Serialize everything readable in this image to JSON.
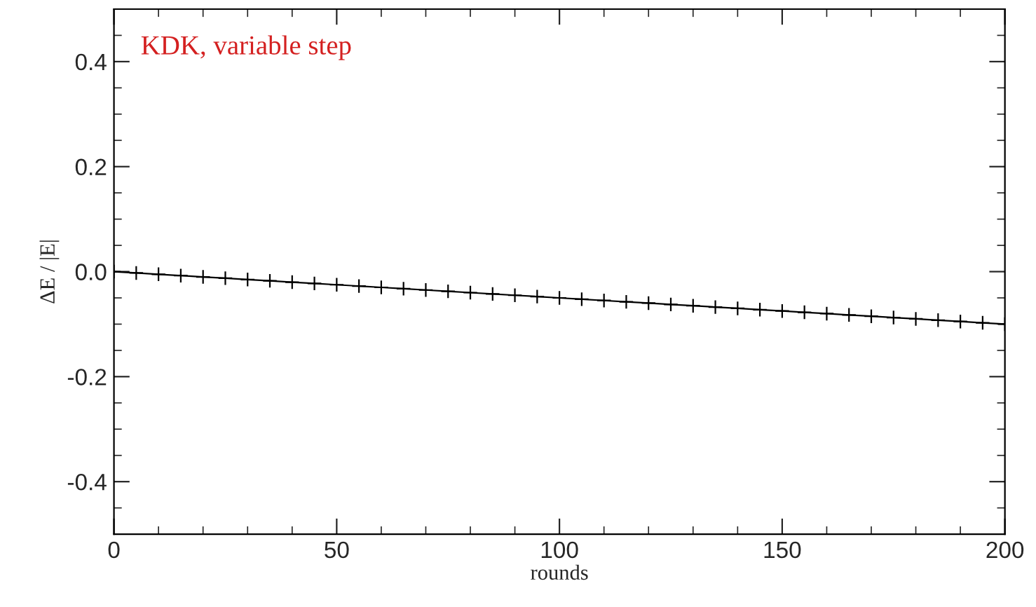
{
  "chart_data": {
    "type": "line",
    "xlabel": "rounds",
    "ylabel": "ΔE / |E|",
    "annotations": [
      "KDK, variable step"
    ],
    "x": [
      0,
      5,
      10,
      15,
      20,
      25,
      30,
      35,
      40,
      45,
      50,
      55,
      60,
      65,
      70,
      75,
      80,
      85,
      90,
      95,
      100,
      105,
      110,
      115,
      120,
      125,
      130,
      135,
      140,
      145,
      150,
      155,
      160,
      165,
      170,
      175,
      180,
      185,
      190,
      195,
      200
    ],
    "series": [
      {
        "color": "#000000",
        "values": [
          0.0,
          -0.0025,
          -0.005,
          -0.0075,
          -0.01,
          -0.0125,
          -0.015,
          -0.0175,
          -0.02,
          -0.0225,
          -0.025,
          -0.0275,
          -0.03,
          -0.0325,
          -0.035,
          -0.0375,
          -0.04,
          -0.0425,
          -0.045,
          -0.0475,
          -0.05,
          -0.0525,
          -0.055,
          -0.0575,
          -0.06,
          -0.0625,
          -0.065,
          -0.0675,
          -0.07,
          -0.0725,
          -0.075,
          -0.0775,
          -0.08,
          -0.0825,
          -0.085,
          -0.0875,
          -0.09,
          -0.0925,
          -0.095,
          -0.0975,
          -0.1
        ]
      }
    ],
    "marker": "cross",
    "line_style": "solid",
    "xlim": [
      0,
      200
    ],
    "xticks": [
      0,
      50,
      100,
      150,
      200
    ],
    "ylim": [
      -0.5,
      0.5
    ],
    "yticks": [
      {
        "value": -0.4,
        "label": "-0.4"
      },
      {
        "value": -0.2,
        "label": "-0.2"
      },
      {
        "value": 0,
        "label": "0.0"
      },
      {
        "value": 0.2,
        "label": "0.2"
      },
      {
        "value": 0.4,
        "label": "0.4"
      }
    ],
    "grid": false,
    "legend": false
  }
}
